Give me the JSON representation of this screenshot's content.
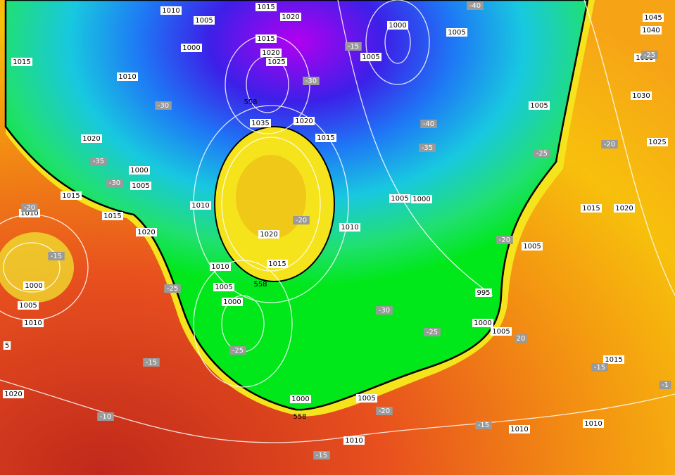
{
  "pressure_labels": [
    "1010",
    "1015",
    "1005",
    "1020",
    "1015",
    "1000",
    "1020",
    "1025",
    "1015",
    "1010",
    "1035",
    "1020",
    "1015",
    "1020",
    "1000",
    "1005",
    "1015",
    "1010",
    "1015",
    "1010",
    "1020",
    "1020",
    "1015",
    "1010",
    "1005",
    "1000",
    "1000",
    "1005",
    "1010",
    "1000",
    "1005",
    "1010",
    "1010",
    "1010",
    "1015",
    "995",
    "1000",
    "1005",
    "1005",
    "1015",
    "1020",
    "1005",
    "1005",
    "1000",
    "1010",
    "1000",
    "1005",
    "1005",
    "1045",
    "1040",
    "1035",
    "1030",
    "1025",
    "1020",
    "5"
  ],
  "temperature_labels": [
    "-40",
    "-15",
    "-30",
    "-30",
    "-35",
    "-30",
    "-20",
    "-15",
    "-25",
    "-20",
    "-25",
    "-15",
    "-10",
    "-20",
    "-15",
    "-15",
    "-35",
    "-40",
    "-25",
    "-20",
    "-25",
    "-20",
    "-30",
    "-25",
    "20",
    "-15",
    "-1"
  ],
  "height_labels": [
    "558",
    "558",
    "558"
  ]
}
